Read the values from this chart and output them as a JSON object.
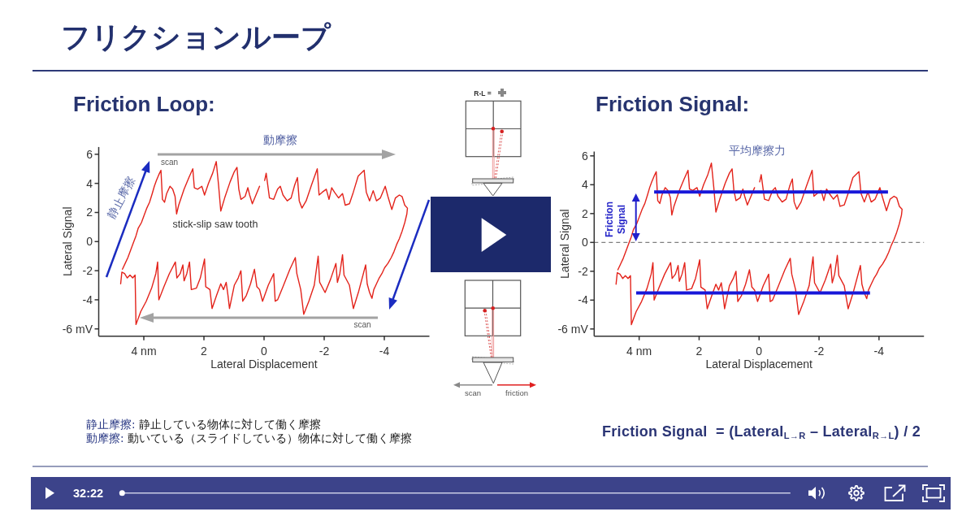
{
  "chart_data": [
    {
      "type": "other",
      "title": "フリクションループ"
    },
    {
      "type": "line",
      "title": "Friction Loop:",
      "xlabel": "Lateral Displacement",
      "ylabel": "Lateral Signal",
      "xlim": [
        5.5,
        -5.5
      ],
      "ylim": [
        -6.5,
        6.5
      ],
      "xticks": [
        {
          "value": 4,
          "label": "4 nm"
        },
        2,
        0,
        -2,
        -4
      ],
      "yticks": [
        {
          "value": -6,
          "label": "-6 mV"
        },
        -4,
        -2,
        0,
        2,
        4,
        6
      ],
      "series": [
        {
          "color": "#e3231b",
          "x": [
            4.71,
            4.62,
            4.53,
            4.44,
            4.35,
            4.26,
            4.19,
            4.08,
            3.99,
            3.9,
            3.81,
            3.72,
            3.65,
            3.58,
            3.5,
            3.43,
            3.38,
            3.31,
            3.24,
            3.13,
            3.04,
            2.96,
            2.91,
            2.84,
            2.66,
            2.5,
            2.37,
            2.32,
            2.21,
            2.07,
            1.98,
            1.85,
            1.71,
            1.59,
            1.51,
            1.44,
            1.31,
            1.13,
            0.99,
            0.9,
            0.84,
            0.77,
            0.63,
            0.54,
            0.48,
            0.39,
            0.27,
            0.15,
            0.07,
            -0.02,
            -0.07,
            -0.18,
            -0.32,
            -0.45,
            -0.54,
            -0.63,
            -0.77,
            -0.9,
            -1.02,
            -1.11,
            -1.17,
            -1.26,
            -1.4,
            -1.58,
            -1.77,
            -1.83,
            -1.94,
            -2.07,
            -2.16,
            -2.25,
            -2.34,
            -2.48,
            -2.61,
            -2.7,
            -2.84,
            -2.97,
            -3.13,
            -3.33,
            -3.4,
            -3.51,
            -3.63,
            -3.74,
            -3.87,
            -4.03,
            -4.12,
            -4.25,
            -4.37,
            -4.5,
            -4.59,
            -4.68,
            -4.77,
            -4.75,
            -4.68,
            -4.59,
            -4.5,
            -4.41,
            -4.32,
            -4.23,
            -4.12,
            -4.01,
            -3.92,
            -3.83,
            -3.74,
            -3.65,
            -3.59,
            -3.51,
            -3.43,
            -3.38,
            -3.15,
            -2.97,
            -2.84,
            -2.66,
            -2.61,
            -2.52,
            -2.44,
            -2.39,
            -2.21,
            -2.03,
            -1.85,
            -1.8,
            -1.67,
            -1.49,
            -1.32,
            -1.22,
            -1.09,
            -1.04,
            -0.86,
            -0.63,
            -0.45,
            -0.37,
            -0.32,
            -0.14,
            0.05,
            0.15,
            0.24,
            0.32,
            0.45,
            0.59,
            0.71,
            0.77,
            0.86,
            0.99,
            1.15,
            1.2,
            1.26,
            1.35,
            1.44,
            1.58,
            1.73,
            1.8,
            1.94,
            1.98,
            2.12,
            2.25,
            2.42,
            2.48,
            2.57,
            2.66,
            2.7,
            2.79,
            2.9,
            2.95,
            3.15,
            3.33,
            3.5,
            3.54,
            3.6,
            3.74,
            3.92,
            4.1,
            4.26,
            4.29,
            4.37,
            4.46,
            4.55,
            4.64,
            4.73,
            4.77
          ],
          "values": [
            -1.9,
            -1.5,
            -1.1,
            -0.6,
            -0.1,
            0.4,
            0.9,
            1.3,
            1.8,
            2.3,
            2.7,
            3.3,
            3.8,
            4.2,
            4.6,
            4.9,
            2.9,
            2.7,
            3.3,
            3.8,
            3.6,
            3.1,
            1.9,
            2.5,
            3.6,
            4.4,
            5.0,
            3.7,
            3.6,
            3.8,
            3.2,
            4.0,
            4.7,
            5.5,
            3.8,
            2.1,
            3.0,
            4.1,
            4.8,
            5.1,
            3.6,
            2.9,
            3.1,
            3.7,
            3.2,
            2.6,
            3.2,
            3.8,
            null,
            4.2,
            4.7,
            3.0,
            2.9,
            3.6,
            3.8,
            3.2,
            2.8,
            3.0,
            3.9,
            4.4,
            2.8,
            2.3,
            2.8,
            3.9,
            5.0,
            3.2,
            3.4,
            3.6,
            2.9,
            3.7,
            3.4,
            3.0,
            3.3,
            2.5,
            2.6,
            3.4,
            4.5,
            4.9,
            3.4,
            2.8,
            3.5,
            2.8,
            3.0,
            3.8,
            3.1,
            2.2,
            3.0,
            3.2,
            3.1,
            2.5,
            2.3,
            1.9,
            1.3,
            0.7,
            0.2,
            -0.2,
            -0.7,
            -1.1,
            -1.5,
            -1.8,
            -2.2,
            -2.5,
            -2.9,
            -3.3,
            -3.9,
            -3.5,
            -2.9,
            -1.6,
            -3.4,
            -4.6,
            -3.0,
            -2.3,
            -0.9,
            -2.2,
            -2.8,
            -1.5,
            -2.6,
            -3.5,
            -2.8,
            -1.0,
            -3.0,
            -4.1,
            -5.0,
            -3.3,
            -2.2,
            -1.1,
            -1.9,
            -3.1,
            -4.0,
            -4.1,
            -2.2,
            -3.0,
            -4.1,
            -3.3,
            -3.1,
            -1.9,
            -2.9,
            -3.7,
            -4.1,
            -2.0,
            -2.5,
            -3.0,
            -4.6,
            -3.7,
            -2.8,
            -3.3,
            -2.9,
            -3.7,
            -4.6,
            -3.3,
            -3.1,
            -1.2,
            -2.5,
            -3.2,
            -3.3,
            -1.4,
            -2.2,
            -2.7,
            -1.6,
            -2.2,
            -2.5,
            -1.4,
            -2.2,
            -3.1,
            -4.0,
            -1.4,
            -2.2,
            -3.2,
            -4.1,
            -4.8,
            -5.7,
            -2.3,
            -2.5,
            -2.3,
            -2.5,
            -2.2,
            -2.1,
            -2.9
          ]
        }
      ],
      "annotations": [
        "動摩擦",
        "scan",
        "静止摩擦",
        "stick-slip saw tooth",
        "scan",
        "静止摩擦: 静止している物体に対して働く摩擦",
        "動摩擦: 動いている（スライドしている）物体に対して働く摩擦"
      ]
    },
    {
      "type": "other",
      "annotations": [
        "R-L =",
        "scan",
        "friction"
      ]
    },
    {
      "type": "line",
      "title": "Friction Signal:",
      "xlabel": "Lateral Displacement",
      "ylabel": "Lateral Signal",
      "xlim": [
        5.5,
        -5.5
      ],
      "ylim": [
        -6.5,
        6.3
      ],
      "xticks": [
        {
          "value": 4,
          "label": "4 nm"
        },
        2,
        0,
        -2,
        -4
      ],
      "yticks": [
        {
          "value": -6,
          "label": "-6 mV"
        },
        -4,
        -2,
        0,
        2,
        4,
        6
      ],
      "ref_lines": [
        {
          "axis": "y",
          "value": 0,
          "color": "#7f7f7f",
          "line_style": "dashed"
        }
      ],
      "series": [
        {
          "color": "#e3231b",
          "x": [
            4.71,
            4.62,
            4.53,
            4.44,
            4.35,
            4.26,
            4.19,
            4.08,
            3.99,
            3.9,
            3.81,
            3.72,
            3.65,
            3.58,
            3.5,
            3.43,
            3.38,
            3.31,
            3.24,
            3.13,
            3.04,
            2.96,
            2.91,
            2.84,
            2.66,
            2.5,
            2.37,
            2.32,
            2.21,
            2.07,
            1.98,
            1.85,
            1.71,
            1.59,
            1.51,
            1.44,
            1.31,
            1.13,
            0.99,
            0.9,
            0.84,
            0.77,
            0.63,
            0.54,
            0.48,
            0.39,
            0.27,
            0.15,
            0.07,
            -0.02,
            -0.07,
            -0.18,
            -0.32,
            -0.45,
            -0.54,
            -0.63,
            -0.77,
            -0.9,
            -1.02,
            -1.11,
            -1.17,
            -1.26,
            -1.4,
            -1.58,
            -1.77,
            -1.83,
            -1.94,
            -2.07,
            -2.16,
            -2.25,
            -2.34,
            -2.48,
            -2.61,
            -2.7,
            -2.84,
            -2.97,
            -3.13,
            -3.33,
            -3.4,
            -3.51,
            -3.63,
            -3.74,
            -3.87,
            -4.03,
            -4.12,
            -4.25,
            -4.37,
            -4.5,
            -4.59,
            -4.68,
            -4.77,
            -4.75,
            -4.68,
            -4.59,
            -4.5,
            -4.41,
            -4.32,
            -4.23,
            -4.12,
            -4.01,
            -3.92,
            -3.83,
            -3.74,
            -3.65,
            -3.59,
            -3.51,
            -3.43,
            -3.38,
            -3.15,
            -2.97,
            -2.84,
            -2.66,
            -2.61,
            -2.52,
            -2.44,
            -2.39,
            -2.21,
            -2.03,
            -1.85,
            -1.8,
            -1.67,
            -1.49,
            -1.32,
            -1.22,
            -1.09,
            -1.04,
            -0.86,
            -0.63,
            -0.45,
            -0.37,
            -0.32,
            -0.14,
            0.05,
            0.15,
            0.24,
            0.32,
            0.45,
            0.59,
            0.71,
            0.77,
            0.86,
            0.99,
            1.15,
            1.2,
            1.26,
            1.35,
            1.44,
            1.58,
            1.73,
            1.8,
            1.94,
            1.98,
            2.12,
            2.25,
            2.42,
            2.48,
            2.57,
            2.66,
            2.7,
            2.79,
            2.9,
            2.95,
            3.15,
            3.33,
            3.5,
            3.54,
            3.6,
            3.74,
            3.92,
            4.1,
            4.26,
            4.29,
            4.37,
            4.46,
            4.55,
            4.64,
            4.73,
            4.77
          ],
          "values": [
            -1.9,
            -1.5,
            -1.1,
            -0.6,
            -0.1,
            0.4,
            0.9,
            1.3,
            1.8,
            2.3,
            2.7,
            3.3,
            3.8,
            4.2,
            4.6,
            4.9,
            2.9,
            2.7,
            3.3,
            3.8,
            3.6,
            3.1,
            1.9,
            2.5,
            3.6,
            4.4,
            5.0,
            3.7,
            3.6,
            3.8,
            3.2,
            4.0,
            4.7,
            5.5,
            3.8,
            2.1,
            3.0,
            4.1,
            4.8,
            5.1,
            3.6,
            2.9,
            3.1,
            3.7,
            3.2,
            2.6,
            3.2,
            3.8,
            null,
            4.2,
            4.7,
            3.0,
            2.9,
            3.6,
            3.8,
            3.2,
            2.8,
            3.0,
            3.9,
            4.4,
            2.8,
            2.3,
            2.8,
            3.9,
            5.0,
            3.2,
            3.4,
            3.6,
            2.9,
            3.7,
            3.4,
            3.0,
            3.3,
            2.5,
            2.6,
            3.4,
            4.5,
            4.9,
            3.4,
            2.8,
            3.5,
            2.8,
            3.0,
            3.8,
            3.1,
            2.2,
            3.0,
            3.2,
            3.1,
            2.5,
            2.3,
            1.9,
            1.3,
            0.7,
            0.2,
            -0.2,
            -0.7,
            -1.1,
            -1.5,
            -1.8,
            -2.2,
            -2.5,
            -2.9,
            -3.3,
            -3.9,
            -3.5,
            -2.9,
            -1.6,
            -3.4,
            -4.6,
            -3.0,
            -2.3,
            -0.9,
            -2.2,
            -2.8,
            -1.5,
            -2.6,
            -3.5,
            -2.8,
            -1.0,
            -3.0,
            -4.1,
            -5.0,
            -3.3,
            -2.2,
            -1.1,
            -1.9,
            -3.1,
            -4.0,
            -4.1,
            -2.2,
            -3.0,
            -4.1,
            -3.3,
            -3.1,
            -1.9,
            -2.9,
            -3.7,
            -4.1,
            -2.0,
            -2.5,
            -3.0,
            -4.6,
            -3.7,
            -2.8,
            -3.3,
            -2.9,
            -3.7,
            -4.6,
            -3.3,
            -3.1,
            -1.2,
            -2.5,
            -3.2,
            -3.3,
            -1.4,
            -2.2,
            -2.7,
            -1.6,
            -2.2,
            -2.5,
            -1.4,
            -2.2,
            -3.1,
            -4.0,
            -1.4,
            -2.2,
            -3.2,
            -4.1,
            -4.8,
            -5.7,
            -2.3,
            -2.5,
            -2.3,
            -2.5,
            -2.2,
            -2.1,
            -2.9
          ]
        },
        {
          "color": "#1717d9",
          "x": [
            3.5,
            -4.3
          ],
          "values": [
            3.5,
            3.5
          ]
        },
        {
          "color": "#1717d9",
          "x": [
            4.1,
            -3.7
          ],
          "values": [
            -3.5,
            -3.5
          ]
        }
      ],
      "annotations": [
        "平均摩擦力",
        "Friction Signal",
        "Friction Signal  = (Lateral$_{L→R}$ – Lateral$_{R→L}$) / 2"
      ]
    },
    {
      "type": "other",
      "annotations": [
        "32:22"
      ]
    }
  ]
}
